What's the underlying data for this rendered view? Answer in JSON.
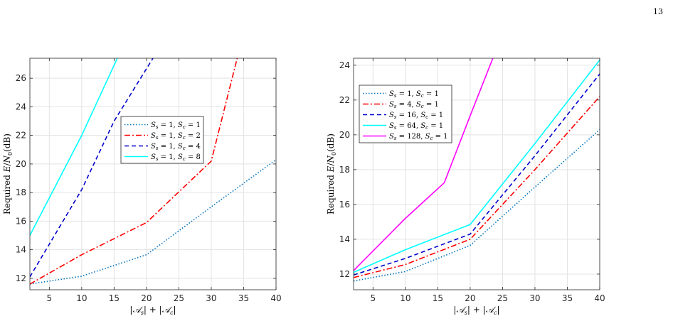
{
  "page": {
    "page_number": "13"
  },
  "chart_data": [
    {
      "type": "line",
      "xlabel": "|𝒜s| + |𝒜c|",
      "ylabel": "Required E/N0(dB)",
      "xlim": [
        2,
        40
      ],
      "ylim": [
        11.2,
        27.4
      ],
      "xticks": [
        5,
        10,
        15,
        20,
        25,
        30,
        35,
        40
      ],
      "yticks": [
        12,
        14,
        16,
        18,
        20,
        22,
        24,
        26
      ],
      "grid": true,
      "legend_position": "center",
      "series": [
        {
          "name": "Ss = 1, Sc = 1",
          "color": "#0072BD",
          "dash": "1.5,2.5",
          "x": [
            2,
            10,
            20,
            30,
            40
          ],
          "y": [
            11.6,
            12.15,
            13.65,
            17.0,
            20.3
          ]
        },
        {
          "name": "Ss = 1, Sc = 2",
          "color": "#FF0000",
          "dash": "8,3,2,3",
          "x": [
            2,
            10,
            20,
            30,
            34
          ],
          "y": [
            11.6,
            13.65,
            15.9,
            20.2,
            27.4
          ]
        },
        {
          "name": "Ss = 1, Sc = 4",
          "color": "#0000CC",
          "dash": "6,4",
          "x": [
            2,
            10,
            15,
            21
          ],
          "y": [
            12.1,
            18.2,
            23.0,
            27.4
          ]
        },
        {
          "name": "Ss = 1, Sc = 8",
          "color": "#00FFFF",
          "dash": "",
          "x": [
            2,
            10,
            15.5
          ],
          "y": [
            15.0,
            22.0,
            27.4
          ]
        }
      ]
    },
    {
      "type": "line",
      "xlabel": "|𝒜s| + |𝒜c|",
      "ylabel": "Required E/N0(dB)",
      "xlim": [
        2,
        40
      ],
      "ylim": [
        11.1,
        24.4
      ],
      "xticks": [
        5,
        10,
        15,
        20,
        25,
        30,
        35,
        40
      ],
      "yticks": [
        12,
        14,
        16,
        18,
        20,
        22,
        24
      ],
      "grid": true,
      "legend_position": "top-left",
      "series": [
        {
          "name": "Ss = 1, Sc = 1",
          "color": "#0072BD",
          "dash": "1.5,2.5",
          "x": [
            2,
            10,
            20,
            30,
            40
          ],
          "y": [
            11.6,
            12.15,
            13.65,
            17.0,
            20.3
          ]
        },
        {
          "name": "Ss = 4, Sc = 1",
          "color": "#FF0000",
          "dash": "8,3,2,3",
          "x": [
            2,
            10,
            20,
            30,
            40
          ],
          "y": [
            11.8,
            12.55,
            14.0,
            18.0,
            22.2
          ]
        },
        {
          "name": "Ss = 16, Sc = 1",
          "color": "#0000CC",
          "dash": "6,4",
          "x": [
            2,
            10,
            20,
            30,
            40
          ],
          "y": [
            11.95,
            12.9,
            14.3,
            18.8,
            23.5
          ]
        },
        {
          "name": "Ss = 64, Sc = 1",
          "color": "#00FFFF",
          "dash": "",
          "x": [
            2,
            10,
            20,
            30,
            40
          ],
          "y": [
            12.1,
            13.4,
            14.85,
            19.5,
            24.3
          ]
        },
        {
          "name": "Ss = 128, Sc = 1",
          "color": "#FF00FF",
          "dash": "",
          "x": [
            2,
            10,
            16,
            20,
            23.5
          ],
          "y": [
            12.2,
            15.2,
            17.25,
            21.1,
            24.4
          ]
        }
      ]
    }
  ]
}
